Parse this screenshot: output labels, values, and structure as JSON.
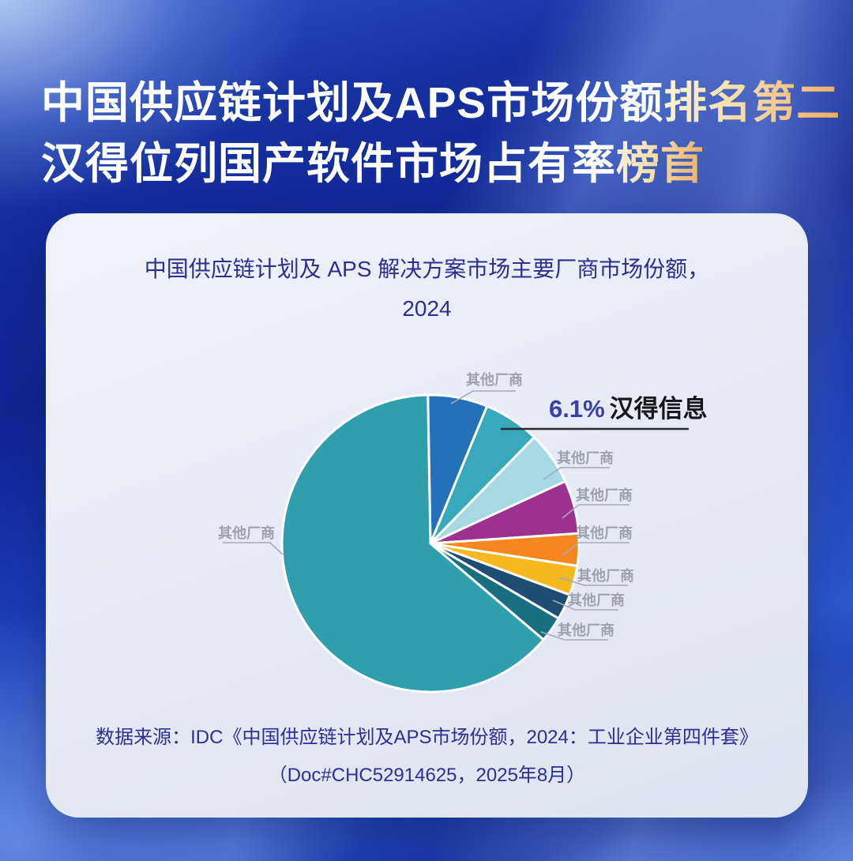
{
  "header": {
    "line1_white": "中国供应链计划及APS市场份额",
    "line1_gold": "排名第二",
    "line2_white": "汉得位列国产软件市场占有率",
    "line2_gold": "榜首"
  },
  "card": {
    "chart_title_line1": "中国供应链计划及 APS 解决方案市场主要厂商市场份额，",
    "chart_title_line2": "2024",
    "source_line1": "数据来源：IDC《中国供应链计划及APS市场份额，2024：工业企业第四件套》",
    "source_line2": "（Doc#CHC52914625，2025年8月）"
  },
  "chart_data": {
    "type": "pie",
    "title": "中国供应链计划及 APS 解决方案市场主要厂商市场份额，2024",
    "start_angle_deg": -1,
    "clockwise": true,
    "highlight": {
      "label": "汉得信息",
      "value_label": "6.1%",
      "share_pct": 6.1
    },
    "slices": [
      {
        "label": "其他厂商",
        "pct": 6.5,
        "color": "#2471ba"
      },
      {
        "label": "汉得信息",
        "pct": 6.1,
        "color": "#38a9bd"
      },
      {
        "label": "其他厂商",
        "pct": 5.8,
        "color": "#a6d9e2"
      },
      {
        "label": "其他厂商",
        "pct": 5.8,
        "color": "#9c3190"
      },
      {
        "label": "其他厂商",
        "pct": 3.5,
        "color": "#f6871f"
      },
      {
        "label": "其他厂商",
        "pct": 3.2,
        "color": "#f5b81f"
      },
      {
        "label": "其他厂商",
        "pct": 2.8,
        "color": "#1d4d72"
      },
      {
        "label": "其他厂商",
        "pct": 2.8,
        "color": "#1a6e82"
      },
      {
        "label": "其他厂商",
        "pct": 63.5,
        "color": "#2f9fad"
      }
    ],
    "colors_note": {
      "label_gray": "#9da2af",
      "highlight_pct_color": "#3a3fa5",
      "highlight_name_color": "#17171c"
    }
  }
}
